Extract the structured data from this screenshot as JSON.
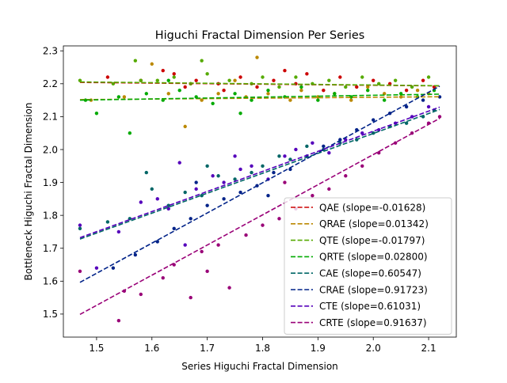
{
  "chart_data": {
    "type": "scatter",
    "title": "Higuchi Fractal Dimension Per Series",
    "xlabel": "Series Higuchi Fractal Dimension",
    "ylabel": "Bottleneck Higuchi Fractal Dimension",
    "xlim": [
      1.44,
      2.15
    ],
    "ylim": [
      1.43,
      2.315
    ],
    "x_ticks": [
      1.5,
      1.6,
      1.7,
      1.8,
      1.9,
      2.0,
      2.1
    ],
    "x_tick_labels": [
      "1.5",
      "1.6",
      "1.7",
      "1.8",
      "1.9",
      "2.0",
      "2.1"
    ],
    "y_ticks": [
      1.5,
      1.6,
      1.7,
      1.8,
      1.9,
      2.0,
      2.1,
      2.2,
      2.3
    ],
    "y_tick_labels": [
      "1.5",
      "1.6",
      "1.7",
      "1.8",
      "1.9",
      "2.0",
      "2.1",
      "2.2",
      "2.3"
    ],
    "grid": false,
    "legend_position": "lower right",
    "fit_x_range": [
      1.47,
      2.12
    ],
    "series": [
      {
        "name": "QAE (slope=-0.01628)",
        "slope": -0.01628,
        "intercept": 2.228,
        "color": "#cc0000",
        "points": [
          [
            1.52,
            2.22
          ],
          [
            1.58,
            2.21
          ],
          [
            1.62,
            2.24
          ],
          [
            1.64,
            2.23
          ],
          [
            1.66,
            2.19
          ],
          [
            1.68,
            2.21
          ],
          [
            1.72,
            2.2
          ],
          [
            1.76,
            2.22
          ],
          [
            1.79,
            2.19
          ],
          [
            1.82,
            2.21
          ],
          [
            1.86,
            2.2
          ],
          [
            1.88,
            2.23
          ],
          [
            1.91,
            2.18
          ],
          [
            1.94,
            2.22
          ],
          [
            1.97,
            2.19
          ],
          [
            2.0,
            2.21
          ],
          [
            2.03,
            2.2
          ],
          [
            2.06,
            2.18
          ],
          [
            2.09,
            2.21
          ],
          [
            2.11,
            2.19
          ],
          [
            1.84,
            2.24
          ],
          [
            1.73,
            2.18
          ]
        ]
      },
      {
        "name": "QRAE (slope=0.01342)",
        "slope": 0.01342,
        "intercept": 2.132,
        "color": "#bb8800",
        "points": [
          [
            1.49,
            2.15
          ],
          [
            1.55,
            2.16
          ],
          [
            1.6,
            2.26
          ],
          [
            1.63,
            2.17
          ],
          [
            1.66,
            2.07
          ],
          [
            1.69,
            2.15
          ],
          [
            1.72,
            2.17
          ],
          [
            1.77,
            2.16
          ],
          [
            1.79,
            2.28
          ],
          [
            1.81,
            2.17
          ],
          [
            1.85,
            2.15
          ],
          [
            1.87,
            2.18
          ],
          [
            1.9,
            2.16
          ],
          [
            1.93,
            2.17
          ],
          [
            1.96,
            2.15
          ],
          [
            1.99,
            2.19
          ],
          [
            2.02,
            2.17
          ],
          [
            2.05,
            2.16
          ],
          [
            2.08,
            2.18
          ],
          [
            2.1,
            2.17
          ],
          [
            1.75,
            2.21
          ],
          [
            1.67,
            2.2
          ]
        ]
      },
      {
        "name": "QTE (slope=-0.01797)",
        "slope": -0.01797,
        "intercept": 2.232,
        "color": "#55aa00",
        "points": [
          [
            1.47,
            2.21
          ],
          [
            1.53,
            2.2
          ],
          [
            1.57,
            2.27
          ],
          [
            1.61,
            2.21
          ],
          [
            1.64,
            2.22
          ],
          [
            1.67,
            2.2
          ],
          [
            1.7,
            2.23
          ],
          [
            1.74,
            2.21
          ],
          [
            1.78,
            2.2
          ],
          [
            1.8,
            2.22
          ],
          [
            1.83,
            2.19
          ],
          [
            1.86,
            2.22
          ],
          [
            1.89,
            2.2
          ],
          [
            1.92,
            2.21
          ],
          [
            1.95,
            2.19
          ],
          [
            1.98,
            2.22
          ],
          [
            2.01,
            2.2
          ],
          [
            2.04,
            2.21
          ],
          [
            2.07,
            2.19
          ],
          [
            2.1,
            2.22
          ],
          [
            1.69,
            2.27
          ],
          [
            1.58,
            2.21
          ]
        ]
      },
      {
        "name": "QRTE (slope=0.02800)",
        "slope": 0.028,
        "intercept": 2.109,
        "color": "#00aa00",
        "points": [
          [
            1.48,
            2.15
          ],
          [
            1.5,
            2.11
          ],
          [
            1.54,
            2.16
          ],
          [
            1.56,
            2.05
          ],
          [
            1.59,
            2.17
          ],
          [
            1.62,
            2.15
          ],
          [
            1.65,
            2.18
          ],
          [
            1.68,
            2.16
          ],
          [
            1.71,
            2.14
          ],
          [
            1.75,
            2.17
          ],
          [
            1.78,
            2.15
          ],
          [
            1.81,
            2.18
          ],
          [
            1.84,
            2.16
          ],
          [
            1.87,
            2.19
          ],
          [
            1.9,
            2.15
          ],
          [
            1.93,
            2.17
          ],
          [
            1.96,
            2.16
          ],
          [
            1.99,
            2.18
          ],
          [
            2.02,
            2.15
          ],
          [
            2.05,
            2.17
          ],
          [
            2.08,
            2.16
          ],
          [
            2.11,
            2.18
          ],
          [
            1.63,
            2.21
          ],
          [
            1.76,
            2.11
          ]
        ]
      },
      {
        "name": "CAE (slope=0.60547)",
        "slope": 0.60547,
        "intercept": 0.838,
        "color": "#006666",
        "points": [
          [
            1.47,
            1.76
          ],
          [
            1.52,
            1.78
          ],
          [
            1.56,
            1.79
          ],
          [
            1.6,
            1.88
          ],
          [
            1.63,
            1.83
          ],
          [
            1.66,
            1.87
          ],
          [
            1.69,
            1.86
          ],
          [
            1.72,
            1.92
          ],
          [
            1.75,
            1.91
          ],
          [
            1.78,
            1.93
          ],
          [
            1.8,
            1.95
          ],
          [
            1.83,
            1.98
          ],
          [
            1.85,
            1.97
          ],
          [
            1.88,
            2.01
          ],
          [
            1.91,
            2.0
          ],
          [
            1.94,
            2.02
          ],
          [
            1.97,
            2.03
          ],
          [
            2.0,
            2.05
          ],
          [
            2.03,
            2.07
          ],
          [
            2.06,
            2.08
          ],
          [
            2.09,
            2.1
          ],
          [
            2.11,
            2.12
          ],
          [
            1.7,
            1.95
          ],
          [
            1.59,
            1.93
          ]
        ]
      },
      {
        "name": "CRAE (slope=0.91723)",
        "slope": 0.91723,
        "intercept": 0.248,
        "color": "#002288",
        "points": [
          [
            1.53,
            1.64
          ],
          [
            1.57,
            1.68
          ],
          [
            1.61,
            1.72
          ],
          [
            1.64,
            1.76
          ],
          [
            1.67,
            1.79
          ],
          [
            1.7,
            1.83
          ],
          [
            1.73,
            1.85
          ],
          [
            1.76,
            1.87
          ],
          [
            1.79,
            1.89
          ],
          [
            1.82,
            1.93
          ],
          [
            1.85,
            1.94
          ],
          [
            1.88,
            1.98
          ],
          [
            1.91,
            2.01
          ],
          [
            1.94,
            2.03
          ],
          [
            1.97,
            2.06
          ],
          [
            2.0,
            2.09
          ],
          [
            2.03,
            2.11
          ],
          [
            2.06,
            2.13
          ],
          [
            2.09,
            2.15
          ],
          [
            2.12,
            2.16
          ],
          [
            1.81,
            1.86
          ],
          [
            1.68,
            1.9
          ]
        ]
      },
      {
        "name": "CTE (slope=0.61031)",
        "slope": 0.61031,
        "intercept": 0.835,
        "color": "#5500bb",
        "points": [
          [
            1.47,
            1.77
          ],
          [
            1.5,
            1.64
          ],
          [
            1.54,
            1.75
          ],
          [
            1.58,
            1.84
          ],
          [
            1.61,
            1.85
          ],
          [
            1.63,
            1.82
          ],
          [
            1.65,
            1.96
          ],
          [
            1.68,
            1.88
          ],
          [
            1.71,
            1.92
          ],
          [
            1.73,
            1.9
          ],
          [
            1.76,
            1.94
          ],
          [
            1.78,
            1.95
          ],
          [
            1.81,
            1.91
          ],
          [
            1.84,
            1.98
          ],
          [
            1.86,
            2.0
          ],
          [
            1.89,
            2.02
          ],
          [
            1.92,
            1.99
          ],
          [
            1.95,
            2.03
          ],
          [
            1.98,
            2.05
          ],
          [
            2.01,
            2.06
          ],
          [
            2.04,
            2.08
          ],
          [
            2.07,
            2.1
          ],
          [
            2.1,
            2.13
          ],
          [
            1.66,
            1.71
          ],
          [
            1.75,
            1.98
          ]
        ]
      },
      {
        "name": "CRTE (slope=0.91637)",
        "slope": 0.91637,
        "intercept": 0.152,
        "color": "#990077",
        "points": [
          [
            1.47,
            1.63
          ],
          [
            1.54,
            1.48
          ],
          [
            1.55,
            1.57
          ],
          [
            1.58,
            1.56
          ],
          [
            1.62,
            1.61
          ],
          [
            1.64,
            1.65
          ],
          [
            1.67,
            1.55
          ],
          [
            1.69,
            1.69
          ],
          [
            1.72,
            1.71
          ],
          [
            1.74,
            1.58
          ],
          [
            1.77,
            1.74
          ],
          [
            1.8,
            1.77
          ],
          [
            1.83,
            1.79
          ],
          [
            1.86,
            1.82
          ],
          [
            1.89,
            1.86
          ],
          [
            1.92,
            1.88
          ],
          [
            1.95,
            1.92
          ],
          [
            1.98,
            1.95
          ],
          [
            2.01,
            1.99
          ],
          [
            2.04,
            2.02
          ],
          [
            2.07,
            2.05
          ],
          [
            2.1,
            2.08
          ],
          [
            2.12,
            2.1
          ],
          [
            1.84,
            1.9
          ],
          [
            1.7,
            1.63
          ]
        ]
      }
    ]
  }
}
